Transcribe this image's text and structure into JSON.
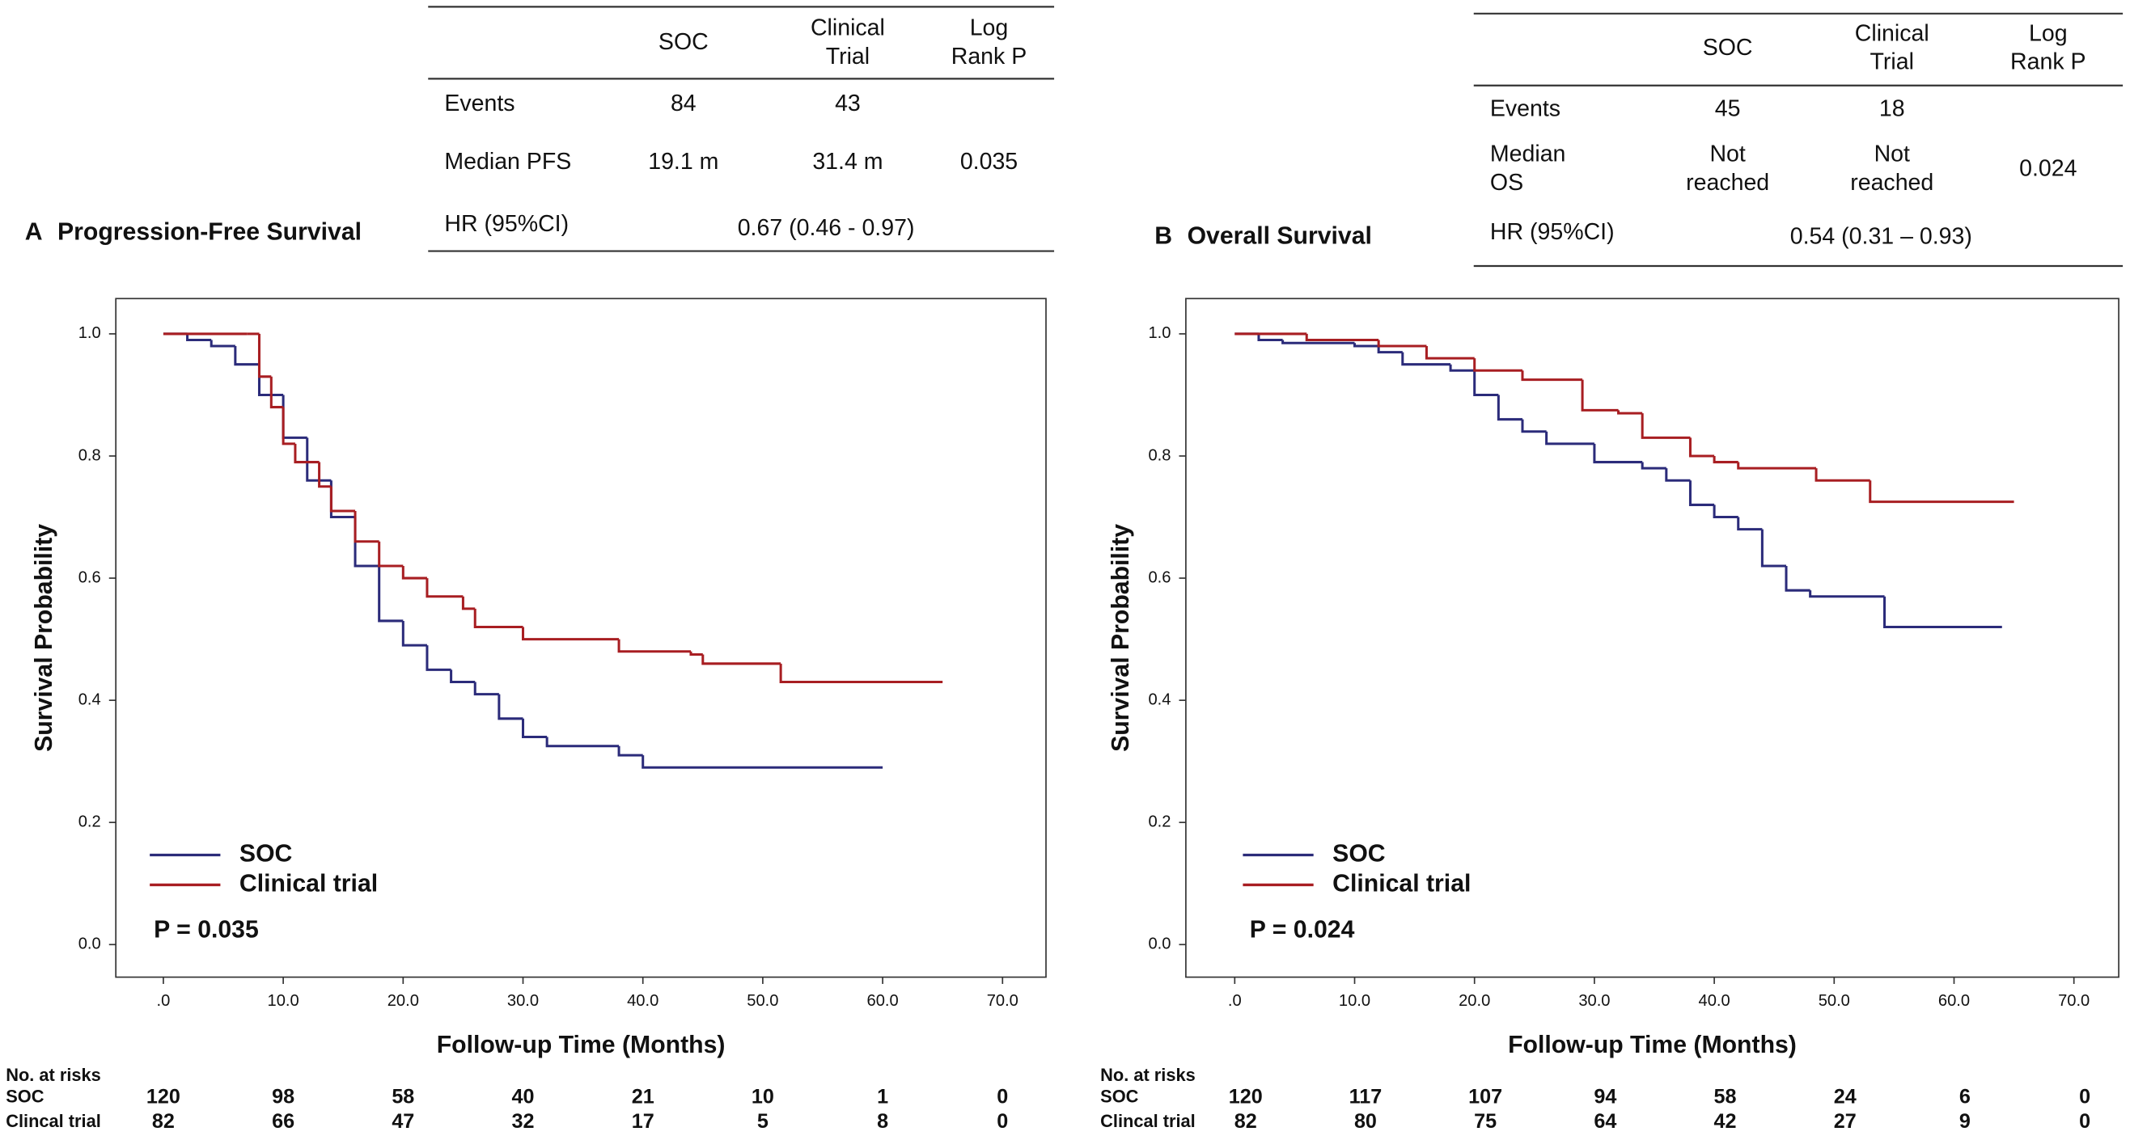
{
  "chart_data": [
    {
      "type": "line",
      "panel": "A",
      "title": "Progression-Free Survival",
      "xlabel": "Follow-up Time (Months)",
      "ylabel": "Survival Probability",
      "xlim": [
        0,
        70
      ],
      "ylim": [
        0,
        1
      ],
      "xticks": [
        {
          "value": 0,
          "label": ".0"
        },
        {
          "value": 10,
          "label": "10.0"
        },
        {
          "value": 20,
          "label": "20.0"
        },
        {
          "value": 30,
          "label": "30.0"
        },
        {
          "value": 40,
          "label": "40.0"
        },
        {
          "value": 50,
          "label": "50.0"
        },
        {
          "value": 60,
          "label": "60.0"
        },
        {
          "value": 70,
          "label": "70.0"
        }
      ],
      "yticks": [
        {
          "value": 0,
          "label": "0.0"
        },
        0.2,
        0.4,
        0.6,
        0.8,
        {
          "value": 1,
          "label": "1.0"
        }
      ],
      "annotation": "P = 0.035",
      "series": [
        {
          "name": "SOC",
          "color": "#2b2b7a",
          "x": [
            0,
            2,
            4,
            6,
            8,
            10,
            12,
            14,
            16,
            18,
            20,
            22,
            24,
            26,
            28,
            30,
            32,
            38,
            40,
            60
          ],
          "values": [
            1.0,
            0.99,
            0.98,
            0.95,
            0.9,
            0.83,
            0.76,
            0.7,
            0.62,
            0.53,
            0.49,
            0.45,
            0.43,
            0.41,
            0.37,
            0.34,
            0.325,
            0.31,
            0.29,
            0.29
          ]
        },
        {
          "name": "Clinical trial",
          "color": "#a81e22",
          "x": [
            0,
            7,
            8,
            9,
            10,
            11,
            13,
            14,
            16,
            18,
            20,
            22,
            25,
            26,
            30,
            38,
            44,
            45,
            51.5,
            65
          ],
          "values": [
            1.0,
            1.0,
            0.93,
            0.88,
            0.82,
            0.79,
            0.75,
            0.71,
            0.66,
            0.62,
            0.6,
            0.57,
            0.55,
            0.52,
            0.5,
            0.48,
            0.475,
            0.46,
            0.43,
            0.43
          ]
        }
      ],
      "summary_table": {
        "columns": [
          [
            "SOC"
          ],
          [
            "Clinical",
            "Trial"
          ],
          [
            "Log",
            "Rank P"
          ]
        ],
        "rows": [
          {
            "label": [
              "Events"
            ],
            "values": [
              [
                "84"
              ],
              [
                "43"
              ]
            ]
          },
          {
            "label": [
              "Median PFS"
            ],
            "values": [
              [
                "19.1 m"
              ],
              [
                "31.4 m"
              ],
              [
                "0.035"
              ]
            ]
          },
          {
            "label": [
              "HR (95%CI)"
            ],
            "combined": [
              "0.67 (0.46 - 0.97)"
            ]
          }
        ]
      },
      "risk_table": {
        "title": "No. at risks",
        "rows": [
          {
            "name": "SOC",
            "values": [
              120,
              98,
              58,
              40,
              21,
              10,
              1,
              0
            ]
          },
          {
            "name": "Clincal trial",
            "values": [
              82,
              66,
              47,
              32,
              17,
              5,
              8,
              0
            ]
          }
        ]
      }
    },
    {
      "type": "line",
      "panel": "B",
      "title": "Overall Survival",
      "xlabel": "Follow-up Time (Months)",
      "ylabel": "Survival Probability",
      "xlim": [
        0,
        70
      ],
      "ylim": [
        0,
        1
      ],
      "xticks": [
        {
          "value": 0,
          "label": ".0"
        },
        {
          "value": 10,
          "label": "10.0"
        },
        {
          "value": 20,
          "label": "20.0"
        },
        {
          "value": 30,
          "label": "30.0"
        },
        {
          "value": 40,
          "label": "40.0"
        },
        {
          "value": 50,
          "label": "50.0"
        },
        {
          "value": 60,
          "label": "60.0"
        },
        {
          "value": 70,
          "label": "70.0"
        }
      ],
      "yticks": [
        {
          "value": 0,
          "label": "0.0"
        },
        0.2,
        0.4,
        0.6,
        0.8,
        {
          "value": 1,
          "label": "1.0"
        }
      ],
      "annotation": "P = 0.024",
      "series": [
        {
          "name": "SOC",
          "color": "#2b2b7a",
          "x": [
            0,
            2,
            4,
            10,
            12,
            14,
            18,
            20,
            22,
            24,
            26,
            30,
            34,
            36,
            38,
            40,
            42,
            44,
            46,
            48,
            54.2,
            64
          ],
          "values": [
            1.0,
            0.99,
            0.985,
            0.98,
            0.97,
            0.95,
            0.94,
            0.9,
            0.86,
            0.84,
            0.82,
            0.79,
            0.78,
            0.76,
            0.72,
            0.7,
            0.68,
            0.62,
            0.58,
            0.57,
            0.52,
            0.52
          ]
        },
        {
          "name": "Clinical trial",
          "color": "#a81e22",
          "x": [
            0,
            6,
            12,
            16,
            20,
            24,
            29,
            32,
            34,
            38,
            40,
            42,
            48.5,
            53,
            65
          ],
          "values": [
            1.0,
            0.99,
            0.98,
            0.96,
            0.94,
            0.925,
            0.875,
            0.87,
            0.83,
            0.8,
            0.79,
            0.78,
            0.76,
            0.725,
            0.725
          ]
        }
      ],
      "summary_table": {
        "columns": [
          [
            "SOC"
          ],
          [
            "Clinical",
            "Trial"
          ],
          [
            "Log",
            "Rank P"
          ]
        ],
        "rows": [
          {
            "label": [
              "Events"
            ],
            "values": [
              [
                "45"
              ],
              [
                "18"
              ]
            ]
          },
          {
            "label": [
              "Median",
              "OS"
            ],
            "values": [
              [
                "Not",
                "reached"
              ],
              [
                "Not",
                "reached"
              ],
              [
                "0.024"
              ]
            ]
          },
          {
            "label": [
              "HR (95%CI)"
            ],
            "combined": [
              "0.54 (0.31 – 0.93)"
            ]
          }
        ]
      },
      "risk_table": {
        "title": "No. at risks",
        "rows": [
          {
            "name": "SOC",
            "values": [
              120,
              117,
              107,
              94,
              58,
              24,
              6,
              0
            ]
          },
          {
            "name": "Clincal trial",
            "values": [
              82,
              80,
              75,
              64,
              42,
              27,
              9,
              0
            ]
          }
        ]
      }
    }
  ]
}
